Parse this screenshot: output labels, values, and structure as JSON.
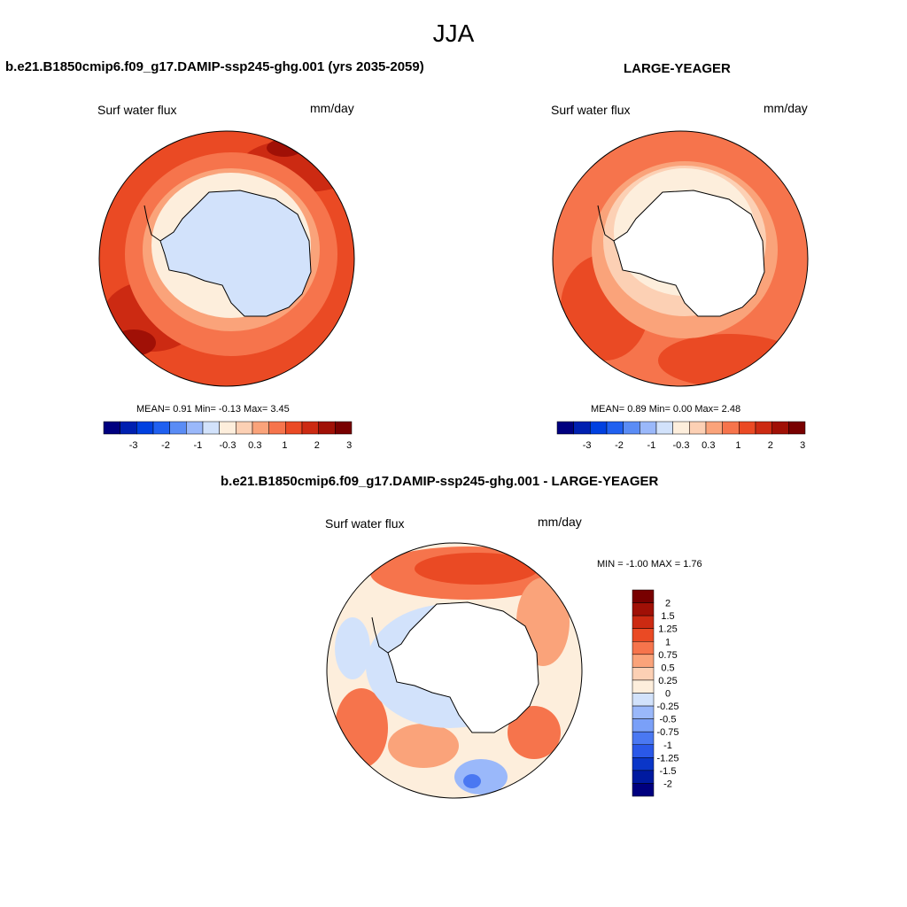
{
  "page": {
    "season": "JJA"
  },
  "panels": {
    "top_left": {
      "title": "b.e21.B1850cmip6.f09_g17.DAMIP-ssp245-ghg.001 (yrs 2035-2059)",
      "variable": "Surf water flux",
      "units": "mm/day",
      "stats": "MEAN=   0.91  Min=   -0.13  Max=   3.45"
    },
    "top_right": {
      "title": "LARGE-YEAGER",
      "variable": "Surf water flux",
      "units": "mm/day",
      "stats": "MEAN=   0.89  Min=   0.00  Max=   2.48"
    },
    "bottom": {
      "title": "b.e21.B1850cmip6.f09_g17.DAMIP-ssp245-ghg.001 - LARGE-YEAGER",
      "variable": "Surf water flux",
      "units": "mm/day",
      "stats": "MIN =  -1.00 MAX =   1.76"
    }
  },
  "colorbar_top": {
    "colors": [
      "#00007f",
      "#0020b0",
      "#0040e0",
      "#2060f0",
      "#5a8cf5",
      "#9ab8fa",
      "#d2e2fb",
      "#fdeedc",
      "#fcd0b4",
      "#faa37a",
      "#f6744c",
      "#ea4a24",
      "#cc2a12",
      "#a01006",
      "#780000"
    ],
    "ticks": [
      "-3",
      "-2",
      "-1",
      "-0.3",
      "0.3",
      "1",
      "2",
      "3"
    ]
  },
  "colorbar_diff": {
    "colors": [
      "#780000",
      "#a01006",
      "#cc2a12",
      "#ea4a24",
      "#f6744c",
      "#faa37a",
      "#fcd0b4",
      "#fdeedc",
      "#d2e2fb",
      "#9ab8fa",
      "#7aa0f8",
      "#4a78f2",
      "#2a58e8",
      "#0a36c8",
      "#001aa0",
      "#00007f"
    ],
    "ticks": [
      "2",
      "1.5",
      "1.25",
      "1",
      "0.75",
      "0.5",
      "0.25",
      "0",
      "-0.25",
      "-0.5",
      "-0.75",
      "-1",
      "-1.25",
      "-1.5",
      "-2"
    ]
  },
  "map_colors": {
    "dark_red": "#a01006",
    "red": "#ea4a24",
    "orange": "#f6744c",
    "salmon": "#faa37a",
    "peach": "#fcd0b4",
    "cream": "#fdeedc",
    "light_blue": "#d2e2fb",
    "blue": "#9ab8fa",
    "deep_blue": "#4a78f2"
  }
}
